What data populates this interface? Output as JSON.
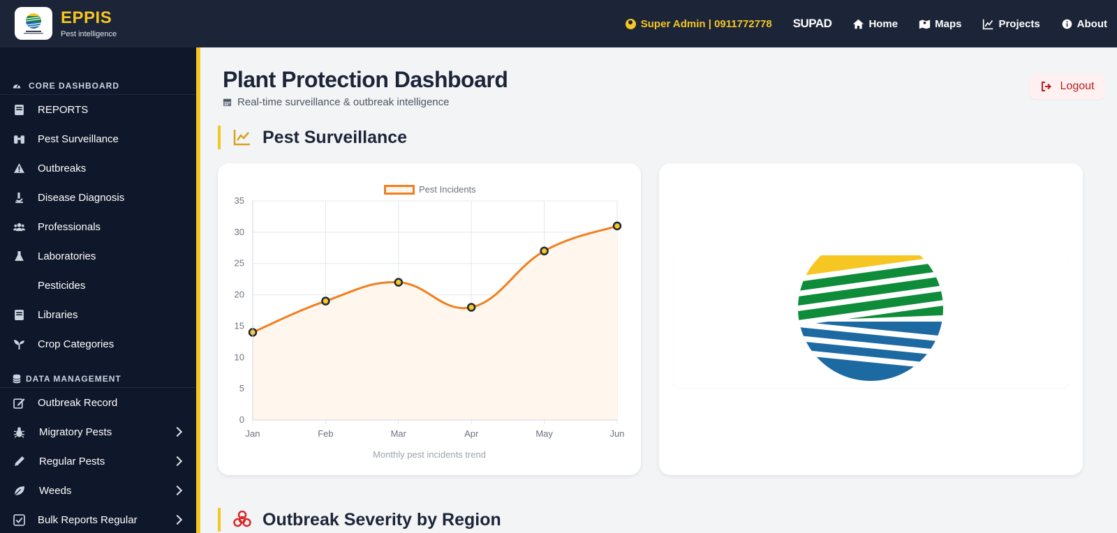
{
  "app": {
    "title": "EPPIS",
    "subtitle": "Pest intelligence"
  },
  "topnav": {
    "user": "Super Admin | 0911772778",
    "supad": "SUPAD",
    "links": [
      {
        "label": "Home",
        "icon": "home-icon"
      },
      {
        "label": "Maps",
        "icon": "map-icon"
      },
      {
        "label": "Projects",
        "icon": "chart-line-icon"
      },
      {
        "label": "About",
        "icon": "info-icon"
      }
    ]
  },
  "sidebar": {
    "core_heading": "CORE DASHBOARD",
    "core_items": [
      {
        "label": "REPORTS",
        "icon": "book-icon"
      },
      {
        "label": "Pest Surveillance",
        "icon": "binoculars-icon"
      },
      {
        "label": "Outbreaks",
        "icon": "warning-icon"
      },
      {
        "label": "Disease Diagnosis",
        "icon": "microscope-icon"
      },
      {
        "label": "Professionals",
        "icon": "users-icon"
      },
      {
        "label": "Laboratories",
        "icon": "flask-icon"
      },
      {
        "label": "Pesticides",
        "icon": ""
      },
      {
        "label": "Libraries",
        "icon": "book-icon"
      },
      {
        "label": "Crop Categories",
        "icon": "seedling-icon"
      }
    ],
    "data_heading": "DATA MANAGEMENT",
    "data_items": [
      {
        "label": "Outbreak Record",
        "icon": "edit-icon",
        "expandable": false
      },
      {
        "label": "Migratory Pests",
        "icon": "bug-icon",
        "expandable": true
      },
      {
        "label": "Regular Pests",
        "icon": "pencil-icon",
        "expandable": true
      },
      {
        "label": "Weeds",
        "icon": "leaf-icon",
        "expandable": true
      },
      {
        "label": "Bulk Reports Regular",
        "icon": "check-square-icon",
        "expandable": true
      }
    ]
  },
  "main": {
    "title": "Plant Protection Dashboard",
    "subtitle": "Real-time surveillance & outbreak intelligence",
    "logout_label": "Logout",
    "section1_title": "Pest Surveillance",
    "section2_title": "Outbreak Severity by Region",
    "chart_caption": "Monthly pest incidents trend"
  },
  "colors": {
    "topbar": "#1c2538",
    "sidebar": "#0f172a",
    "accent": "#f6c623",
    "line": "#f07f1f"
  },
  "chart_data": {
    "type": "line",
    "title": "",
    "categories": [
      "Jan",
      "Feb",
      "Mar",
      "Apr",
      "May",
      "Jun"
    ],
    "series": [
      {
        "name": "Pest Incidents",
        "values": [
          14,
          19,
          22,
          18,
          27,
          31
        ]
      }
    ],
    "yticks": [
      0,
      5,
      10,
      15,
      20,
      25,
      30,
      35
    ],
    "ylim": [
      0,
      35
    ],
    "xlabel": "",
    "ylabel": "",
    "grid": true,
    "legend": "top-center",
    "fill": true
  }
}
